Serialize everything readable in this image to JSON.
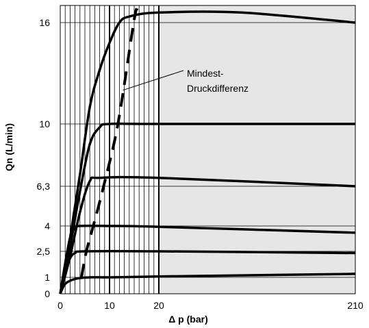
{
  "chart_data": {
    "type": "line",
    "title": "",
    "xlabel": "Δ p (bar)",
    "ylabel": "Qn (L/min)",
    "x_ticks": [
      {
        "label": "0",
        "value": 0
      },
      {
        "label": "10",
        "value": 10
      },
      {
        "label": "20",
        "value": 20
      },
      {
        "label": "210",
        "value": 210
      }
    ],
    "y_ticks": [
      {
        "label": "0",
        "value": 0
      },
      {
        "label": "1",
        "value": 1
      },
      {
        "label": "2,5",
        "value": 2.5
      },
      {
        "label": "4",
        "value": 4
      },
      {
        "label": "6,3",
        "value": 6.3
      },
      {
        "label": "10",
        "value": 10
      },
      {
        "label": "16",
        "value": 16
      }
    ],
    "x_vertical_grid": [
      1,
      2,
      3,
      4,
      5,
      6,
      7,
      8,
      9,
      10,
      11,
      12,
      13,
      14,
      15,
      16,
      17,
      18,
      19,
      20
    ],
    "grid": true,
    "shaded_region_x": [
      20,
      210
    ],
    "series": [
      {
        "values": [
          [
            0,
            0
          ],
          [
            1,
            0.6
          ],
          [
            3,
            0.9
          ],
          [
            6,
            1.0
          ],
          [
            10,
            1.0
          ],
          [
            20,
            1.05
          ],
          [
            210,
            1.2
          ]
        ]
      },
      {
        "values": [
          [
            0,
            0
          ],
          [
            1,
            1.3
          ],
          [
            2,
            2.1
          ],
          [
            3,
            2.4
          ],
          [
            5,
            2.5
          ],
          [
            20,
            2.5
          ],
          [
            210,
            2.4
          ]
        ]
      },
      {
        "values": [
          [
            0,
            0
          ],
          [
            1,
            1.8
          ],
          [
            2,
            3.3
          ],
          [
            3,
            3.9
          ],
          [
            4,
            4.0
          ],
          [
            10,
            4.0
          ],
          [
            20,
            3.95
          ],
          [
            210,
            3.6
          ]
        ]
      },
      {
        "values": [
          [
            0,
            0
          ],
          [
            2,
            2.2
          ],
          [
            4,
            4.8
          ],
          [
            6,
            6.6
          ],
          [
            8,
            6.8
          ],
          [
            20,
            6.8
          ],
          [
            210,
            6.3
          ]
        ]
      },
      {
        "values": [
          [
            0,
            0
          ],
          [
            2,
            2.8
          ],
          [
            4,
            6.0
          ],
          [
            6,
            8.8
          ],
          [
            8,
            9.8
          ],
          [
            10,
            10.0
          ],
          [
            20,
            10.0
          ],
          [
            210,
            10.0
          ]
        ]
      },
      {
        "values": [
          [
            0,
            0
          ],
          [
            2,
            3.3
          ],
          [
            4,
            7.0
          ],
          [
            6,
            11.0
          ],
          [
            8,
            13.2
          ],
          [
            10,
            14.8
          ],
          [
            12,
            16.0
          ],
          [
            14,
            16.6
          ],
          [
            20,
            17.0
          ],
          [
            100,
            17.0
          ],
          [
            210,
            16.0
          ]
        ]
      }
    ],
    "threshold_line": {
      "style": "dashed",
      "values": [
        [
          4.3,
          1.0
        ],
        [
          5.3,
          2.5
        ],
        [
          6.7,
          4.0
        ],
        [
          8.8,
          6.3
        ],
        [
          11.7,
          10.0
        ],
        [
          14.9,
          16.0
        ],
        [
          15.6,
          17.4
        ]
      ]
    },
    "annotation": {
      "line1": "Mindest-",
      "line2": "Druckdifferenz",
      "points_to": [
        12.7,
        12.0
      ]
    }
  }
}
